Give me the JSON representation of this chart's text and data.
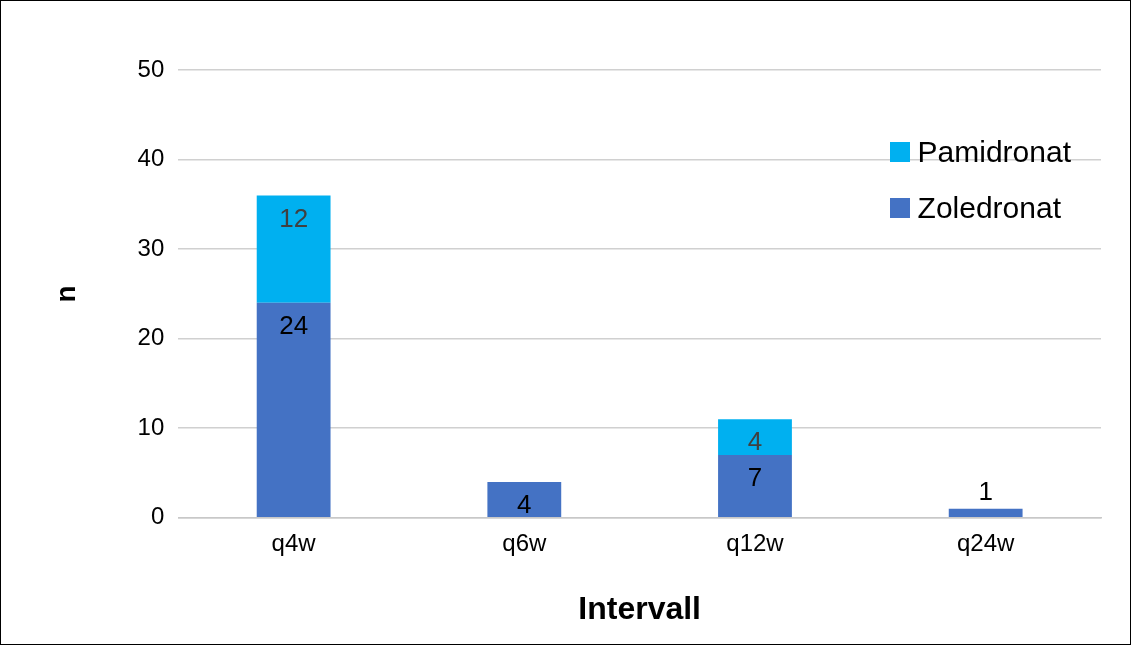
{
  "chart_data": {
    "type": "bar",
    "stacked": true,
    "xlabel": "Intervall",
    "ylabel": "n",
    "categories": [
      "q4w",
      "q6w",
      "q12w",
      "q24w"
    ],
    "series": [
      {
        "name": "Zoledronat",
        "color": "#4472c4",
        "values": [
          24,
          4,
          7,
          1
        ]
      },
      {
        "name": "Pamidronat",
        "color": "#00b0f0",
        "values": [
          12,
          null,
          4,
          null
        ]
      }
    ],
    "ylim": [
      0,
      50
    ],
    "yticks": [
      0,
      10,
      20,
      30,
      40,
      50
    ],
    "grid": "y",
    "legend": "top right",
    "data_labels": true
  }
}
